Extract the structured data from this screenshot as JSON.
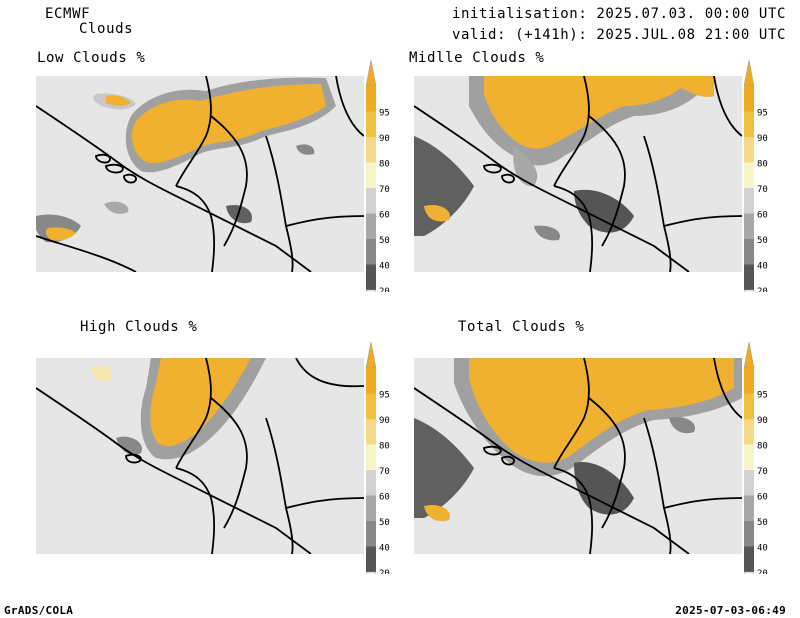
{
  "header": {
    "model": "ECMWF",
    "product": "Clouds",
    "init_line": "initialisation: 2025.07.03. 00:00 UTC",
    "valid_line": "valid: (+141h): 2025.JUL.08 21:00 UTC"
  },
  "panels": [
    {
      "id": "low",
      "title": "Low Clouds %"
    },
    {
      "id": "middle",
      "title": "Midlle Clouds %"
    },
    {
      "id": "high",
      "title": "High Clouds %"
    },
    {
      "id": "total",
      "title": "Total Clouds %"
    }
  ],
  "colorbar": {
    "levels": [
      "95",
      "90",
      "80",
      "70",
      "60",
      "50",
      "40",
      "20"
    ],
    "colors": [
      "#eeaa22",
      "#f0c040",
      "#f5d98a",
      "#f5f5c8",
      "#d2d2d2",
      "#a8a8a8",
      "#888888",
      "#555555"
    ],
    "top_color": "#eeaa22",
    "bottom_color": "#f5f5f5"
  },
  "colors": {
    "background_field": "#e6e6e6",
    "cloud_orange": "#f0b030",
    "cloud_light": "#f8e8b0",
    "grey_light": "#c8c8c8",
    "grey_mid": "#a0a0a0",
    "grey_dark": "#606060",
    "border": "#000000"
  },
  "footer": {
    "left": "GrADS/COLA",
    "right": "2025-07-03-06:49"
  }
}
